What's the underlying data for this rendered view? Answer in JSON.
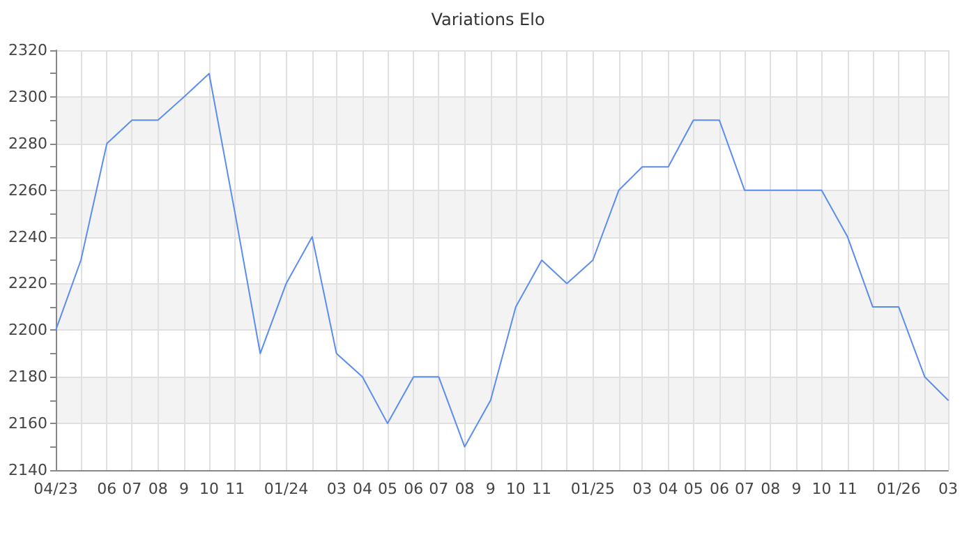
{
  "chart_data": {
    "type": "line",
    "title": "Variations Elo",
    "x": [
      "2023-04",
      "2023-05",
      "2023-06",
      "2023-07",
      "2023-08",
      "2023-09",
      "2023-10",
      "2023-11",
      "2023-12",
      "2024-01",
      "2024-02",
      "2024-03",
      "2024-04",
      "2024-05",
      "2024-06",
      "2024-07",
      "2024-08",
      "2024-09",
      "2024-10",
      "2024-11",
      "2024-12",
      "2025-01",
      "2025-02",
      "2025-03",
      "2025-04",
      "2025-05",
      "2025-06",
      "2025-07",
      "2025-08",
      "2025-09",
      "2025-10",
      "2025-11",
      "2025-12",
      "2026-01",
      "2026-02",
      "2026-03"
    ],
    "series": [
      {
        "color": "#5b8def",
        "values": [
          2200,
          2230,
          2280,
          2290,
          2290,
          2300,
          2310,
          2250,
          2190,
          2220,
          2240,
          2190,
          2180,
          2160,
          2180,
          2180,
          2150,
          2170,
          2210,
          2230,
          2220,
          2230,
          2260,
          2270,
          2270,
          2290,
          2290,
          2260,
          2260,
          2260,
          2260,
          2240,
          2210,
          2210,
          2180,
          2170
        ]
      }
    ],
    "xlim": [
      "2023-04",
      "2026-03"
    ],
    "xticks": [
      {
        "value": "2023-04",
        "label": "04/23"
      },
      {
        "value": "2023-05",
        "label": null
      },
      {
        "value": "2023-06",
        "label": "06"
      },
      {
        "value": "2023-07",
        "label": "07"
      },
      {
        "value": "2023-08",
        "label": "08"
      },
      {
        "value": "2023-09",
        "label": "9"
      },
      {
        "value": "2023-10",
        "label": "10"
      },
      {
        "value": "2023-11",
        "label": "11"
      },
      {
        "value": "2023-12",
        "label": null
      },
      {
        "value": "2024-01",
        "label": "01/24"
      },
      {
        "value": "2024-02",
        "label": null
      },
      {
        "value": "2024-03",
        "label": "03"
      },
      {
        "value": "2024-04",
        "label": "04"
      },
      {
        "value": "2024-05",
        "label": "05"
      },
      {
        "value": "2024-06",
        "label": "06"
      },
      {
        "value": "2024-07",
        "label": "07"
      },
      {
        "value": "2024-08",
        "label": "08"
      },
      {
        "value": "2024-09",
        "label": "9"
      },
      {
        "value": "2024-10",
        "label": "10"
      },
      {
        "value": "2024-11",
        "label": "11"
      },
      {
        "value": "2024-12",
        "label": null
      },
      {
        "value": "2025-01",
        "label": "01/25"
      },
      {
        "value": "2025-02",
        "label": null
      },
      {
        "value": "2025-03",
        "label": "03"
      },
      {
        "value": "2025-04",
        "label": "04"
      },
      {
        "value": "2025-05",
        "label": "05"
      },
      {
        "value": "2025-06",
        "label": "06"
      },
      {
        "value": "2025-07",
        "label": "07"
      },
      {
        "value": "2025-08",
        "label": "08"
      },
      {
        "value": "2025-09",
        "label": "9"
      },
      {
        "value": "2025-10",
        "label": "10"
      },
      {
        "value": "2025-11",
        "label": "11"
      },
      {
        "value": "2025-12",
        "label": null
      },
      {
        "value": "2026-01",
        "label": "01/26"
      },
      {
        "value": "2026-02",
        "label": null
      },
      {
        "value": "2026-03",
        "label": "03"
      }
    ],
    "ylim": [
      2140,
      2320
    ],
    "yticks": [
      2140,
      {
        "value": 2150,
        "label": null
      },
      2160,
      {
        "value": 2170,
        "label": null
      },
      2180,
      {
        "value": 2190,
        "label": null
      },
      2200,
      {
        "value": 2210,
        "label": null
      },
      2220,
      {
        "value": 2230,
        "label": null
      },
      2240,
      {
        "value": 2250,
        "label": null
      },
      2260,
      {
        "value": 2270,
        "label": null
      },
      2280,
      {
        "value": 2290,
        "label": null
      },
      2300,
      {
        "value": 2310,
        "label": null
      },
      2320
    ],
    "grid": true
  }
}
